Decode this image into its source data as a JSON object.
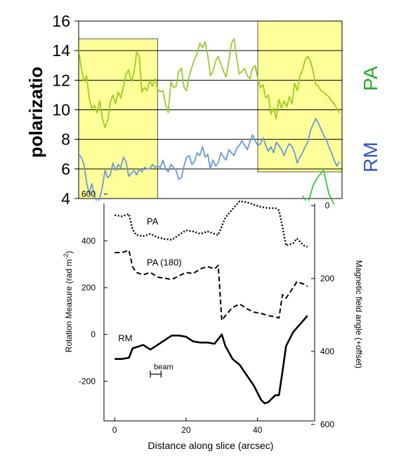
{
  "chart_data": [
    {
      "type": "line",
      "ylabel": "polarizatio",
      "y_ticks": [
        "16",
        "14",
        "12",
        "10",
        "8",
        "6",
        "4"
      ],
      "ylim": [
        4,
        16
      ],
      "xlim": [
        0,
        100
      ],
      "grid": true,
      "highlight_regions": [
        {
          "x_start": 0,
          "x_end": 30,
          "y_start": 4,
          "y_end": 14.8,
          "color": "#ffff99"
        },
        {
          "x_start": 68,
          "x_end": 100,
          "y_start": 5.8,
          "y_end": 16,
          "color": "#ffff99"
        }
      ],
      "series": [
        {
          "name": "PA",
          "color": "#99cc22",
          "x": [
            0,
            1,
            2,
            3,
            4,
            5,
            6,
            7,
            8,
            9,
            10,
            11,
            12,
            13,
            14,
            15,
            16,
            17,
            18,
            19,
            20,
            21,
            22,
            23,
            24,
            25,
            26,
            27,
            28,
            29,
            30,
            31,
            32,
            33,
            34,
            35,
            36,
            37,
            38,
            39,
            40,
            41,
            42,
            43,
            44,
            45,
            46,
            47,
            48,
            49,
            50,
            51,
            52,
            53,
            54,
            55,
            56,
            57,
            58,
            59,
            60,
            61,
            62,
            63,
            64,
            65,
            66,
            67,
            68,
            69,
            70,
            71,
            72,
            73,
            74,
            75,
            76,
            77,
            78,
            79,
            80,
            81,
            82,
            83,
            84,
            85,
            86,
            87,
            88,
            89,
            90,
            91,
            92,
            93,
            94,
            95,
            96,
            97,
            98,
            99
          ],
          "y": [
            14.1,
            12.8,
            11.9,
            12.3,
            10.8,
            10.1,
            10.3,
            9.8,
            10.6,
            9.4,
            8.8,
            9.3,
            10.5,
            11.0,
            10.4,
            11.2,
            10.8,
            11.6,
            12.4,
            12.7,
            11.9,
            12.5,
            13.9,
            13.6,
            11.2,
            11.5,
            11.3,
            12.0,
            11.6,
            12.1,
            11.4,
            11.2,
            11.3,
            10.4,
            9.8,
            11.9,
            11.5,
            11.6,
            12.6,
            12.8,
            11.5,
            11.3,
            12.3,
            12.9,
            13.4,
            13.8,
            14.5,
            14.2,
            14.6,
            13.7,
            12.3,
            12.6,
            13.3,
            13.6,
            13.1,
            12.6,
            12.2,
            13.3,
            14.5,
            14.8,
            13.5,
            12.4,
            12.6,
            12.8,
            12.3,
            12.1,
            12.8,
            13.0,
            12.1,
            11.5,
            11.7,
            10.8,
            11.0,
            9.7,
            10.1,
            9.4,
            10.7,
            10.1,
            10.6,
            10.2,
            10.9,
            10.4,
            11.8,
            11.3,
            12.3,
            12.7,
            13.4,
            13.6,
            13.3,
            12.6,
            11.7,
            11.6,
            11.3,
            11.2,
            11.0,
            10.9,
            10.6,
            10.4,
            10.1,
            9.8
          ]
        },
        {
          "name": "RM",
          "color": "#6699dd",
          "x": [
            0,
            1,
            2,
            3,
            4,
            5,
            6,
            7,
            8,
            9,
            10,
            11,
            12,
            13,
            14,
            15,
            16,
            17,
            18,
            19,
            20,
            21,
            22,
            23,
            24,
            25,
            26,
            27,
            28,
            29,
            30,
            31,
            32,
            33,
            34,
            35,
            36,
            37,
            38,
            39,
            40,
            41,
            42,
            43,
            44,
            45,
            46,
            47,
            48,
            49,
            50,
            51,
            52,
            53,
            54,
            55,
            56,
            57,
            58,
            59,
            60,
            61,
            62,
            63,
            64,
            65,
            66,
            67,
            68,
            69,
            70,
            71,
            72,
            73,
            74,
            75,
            76,
            77,
            78,
            79,
            80,
            81,
            82,
            83,
            84,
            85,
            86,
            87,
            88,
            89,
            90,
            91,
            92,
            93,
            94,
            95,
            96,
            97,
            98,
            99
          ],
          "y": [
            7.0,
            6.8,
            6.3,
            5.1,
            4.3,
            5.0,
            4.2,
            3.7,
            4.0,
            4.8,
            5.9,
            5.4,
            5.6,
            6.4,
            5.9,
            6.3,
            6.1,
            6.8,
            6.5,
            5.5,
            5.7,
            5.9,
            5.6,
            6.0,
            5.8,
            6.1,
            6.0,
            6.0,
            6.3,
            6.1,
            6.2,
            6.1,
            6.6,
            6.0,
            5.8,
            6.3,
            6.1,
            5.9,
            5.3,
            5.4,
            6.2,
            6.8,
            6.9,
            6.3,
            6.5,
            7.1,
            6.9,
            7.5,
            6.8,
            7.0,
            6.0,
            6.6,
            6.2,
            6.4,
            7.1,
            6.8,
            6.6,
            7.3,
            7.1,
            6.9,
            7.4,
            7.6,
            7.9,
            7.6,
            7.3,
            7.8,
            8.3,
            7.9,
            7.6,
            7.7,
            8.1,
            7.6,
            7.2,
            7.5,
            7.1,
            7.8,
            7.6,
            7.3,
            6.9,
            7.4,
            7.7,
            7.5,
            7.1,
            6.4,
            6.8,
            7.1,
            7.5,
            7.8,
            8.6,
            9.0,
            9.4,
            9.1,
            8.7,
            8.3,
            8.0,
            7.5,
            7.1,
            6.6,
            6.2,
            6.5
          ]
        },
        {
          "name": "",
          "color": "#33cc33",
          "x": [
            85,
            87,
            89,
            91,
            93,
            95,
            97
          ],
          "y": [
            4.2,
            3.6,
            4.9,
            5.5,
            5.9,
            4.3,
            3.6
          ]
        }
      ],
      "right_labels": [
        {
          "text": "PA",
          "color": "#22aa22"
        },
        {
          "text": "RM",
          "color": "#3355cc"
        }
      ]
    },
    {
      "type": "line",
      "xlabel": "Distance along slice (arcsec)",
      "ylabel": "Rotation Measure (rad m",
      "ylabel_sup": "-2",
      "ylabel_close": ")",
      "y2label": "Magnetic field angle (+offset)",
      "xlim": [
        -3,
        56
      ],
      "ylim": [
        -370,
        560
      ],
      "y2lim": [
        0,
        600
      ],
      "x_ticks": [
        "0",
        "20",
        "40"
      ],
      "y_ticks": [
        "600",
        "400",
        "200",
        "0",
        "-200"
      ],
      "y2_ticks": [
        "0",
        "200",
        "400",
        "600"
      ],
      "series": [
        {
          "name": "PA",
          "style": "dotted",
          "x": [
            0,
            2,
            4,
            5,
            6,
            8,
            10,
            12,
            14,
            16,
            18,
            20,
            22,
            24,
            26,
            28,
            29,
            31,
            33,
            35,
            37,
            39,
            41,
            43,
            45,
            46,
            47,
            48,
            50,
            51,
            52,
            53,
            54
          ],
          "y": [
            510,
            505,
            515,
            450,
            425,
            420,
            430,
            415,
            408,
            405,
            425,
            445,
            440,
            430,
            440,
            430,
            425,
            500,
            535,
            570,
            565,
            555,
            545,
            540,
            540,
            530,
            460,
            380,
            390,
            410,
            395,
            380,
            375
          ]
        },
        {
          "name": "PA (180)",
          "style": "dashed",
          "x": [
            0,
            2,
            4,
            5,
            6,
            8,
            10,
            12,
            14,
            16,
            18,
            20,
            22,
            24,
            26,
            28,
            29,
            30,
            31,
            33,
            35,
            37,
            39,
            41,
            43,
            45,
            46,
            47,
            48,
            50,
            51,
            52,
            53,
            54
          ],
          "y": [
            350,
            350,
            360,
            290,
            265,
            255,
            265,
            245,
            240,
            235,
            250,
            265,
            260,
            280,
            290,
            280,
            295,
            60,
            80,
            115,
            130,
            110,
            95,
            90,
            80,
            75,
            70,
            170,
            155,
            200,
            225,
            220,
            215,
            205
          ]
        },
        {
          "name": "RM",
          "style": "solid",
          "x": [
            0,
            2,
            4,
            5,
            6,
            8,
            10,
            12,
            14,
            16,
            18,
            20,
            22,
            24,
            26,
            28,
            29,
            30,
            31,
            33,
            35,
            37,
            39,
            41,
            42,
            43,
            44,
            45,
            46,
            47,
            48,
            50,
            52,
            54
          ],
          "y": [
            -105,
            -105,
            -100,
            -60,
            -55,
            -45,
            -65,
            -45,
            -25,
            -5,
            -5,
            -10,
            -30,
            -35,
            -35,
            -40,
            -20,
            0,
            -50,
            -105,
            -130,
            -175,
            -220,
            -280,
            -295,
            -290,
            -275,
            -260,
            -260,
            -160,
            -50,
            10,
            45,
            80
          ]
        }
      ],
      "annotations": [
        {
          "text": "PA",
          "x": 9,
          "y": 470
        },
        {
          "text": "PA (180)",
          "x": 9,
          "y": 295
        },
        {
          "text": "RM",
          "x": 1,
          "y": -30
        },
        {
          "text": "beam",
          "x": 11,
          "y": -150
        }
      ],
      "beam_range": [
        10,
        13
      ],
      "beam_y": -170
    }
  ]
}
